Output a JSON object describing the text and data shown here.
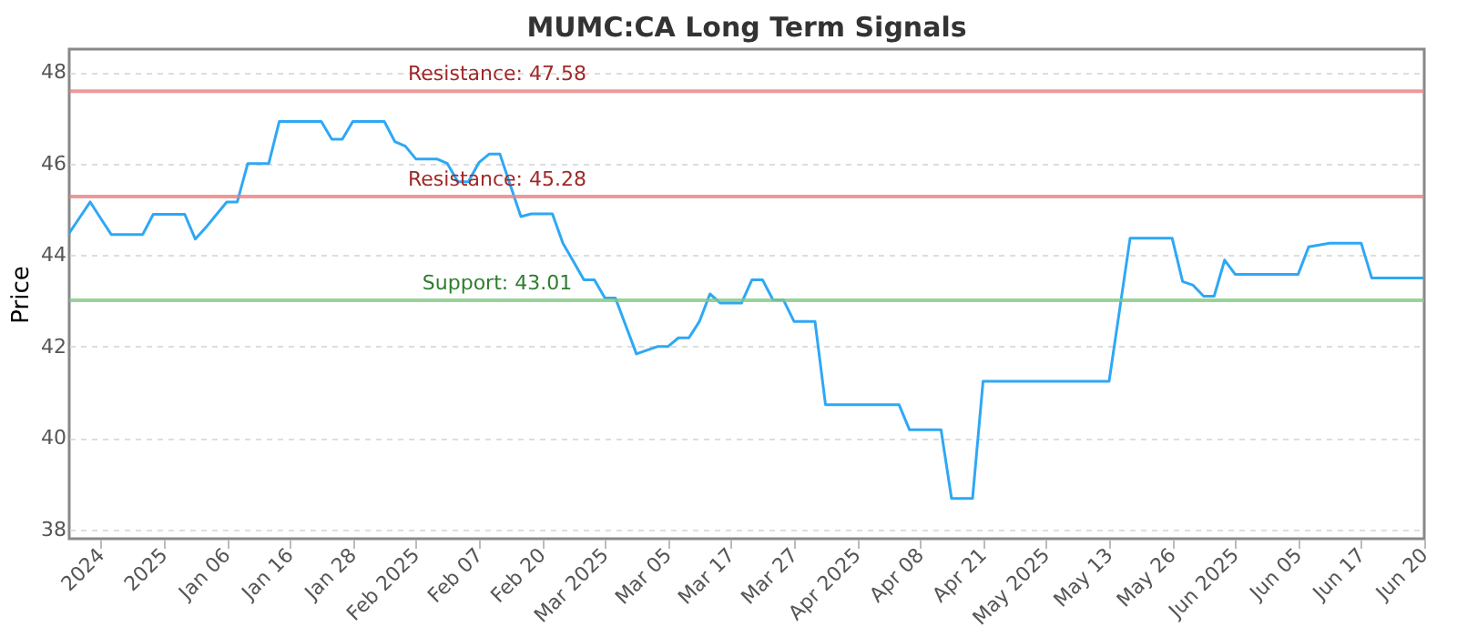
{
  "chart_data": {
    "type": "line",
    "title": "MUMC:CA Long Term Signals",
    "ylabel": "Price",
    "categories": [
      null,
      null,
      null,
      "2024",
      null,
      null,
      null,
      null,
      null,
      "2025",
      null,
      null,
      null,
      null,
      null,
      "Jan 06",
      null,
      null,
      null,
      null,
      null,
      "Jan 16",
      null,
      null,
      null,
      null,
      null,
      "Jan 28",
      null,
      null,
      null,
      null,
      null,
      "Feb 2025",
      null,
      null,
      null,
      null,
      null,
      "Feb 07",
      null,
      null,
      null,
      null,
      null,
      "Feb 20",
      null,
      null,
      null,
      null,
      null,
      "Mar 2025",
      null,
      null,
      null,
      null,
      null,
      "Mar 05",
      null,
      null,
      null,
      null,
      null,
      "Mar 17",
      null,
      null,
      null,
      null,
      null,
      "Mar 27",
      null,
      null,
      null,
      null,
      null,
      "Apr 2025",
      null,
      null,
      null,
      null,
      null,
      "Apr 08",
      null,
      null,
      null,
      null,
      null,
      "Apr 21",
      null,
      null,
      null,
      null,
      null,
      "May 2025",
      null,
      null,
      null,
      null,
      null,
      "May 13",
      null,
      null,
      null,
      null,
      null,
      "May 26",
      null,
      null,
      null,
      null,
      null,
      "Jun 2025",
      null,
      null,
      null,
      null,
      null,
      "Jun 05",
      null,
      null,
      null,
      null,
      null,
      "Jun 17",
      null,
      null,
      null,
      null,
      null,
      "Jun 20"
    ],
    "series": [
      {
        "color": "#2ea8f5",
        "values": [
          44.48,
          44.82,
          45.16,
          44.8,
          44.45,
          44.45,
          44.45,
          44.45,
          44.89,
          44.89,
          44.89,
          44.89,
          44.35,
          44.6,
          44.88,
          45.16,
          45.16,
          46.0,
          46.0,
          46.0,
          46.92,
          46.92,
          46.92,
          46.92,
          46.92,
          46.53,
          46.53,
          46.92,
          46.92,
          46.92,
          46.92,
          46.48,
          46.38,
          46.1,
          46.1,
          46.1,
          46.0,
          45.6,
          45.6,
          46.02,
          46.21,
          46.21,
          45.52,
          44.84,
          44.9,
          44.9,
          44.9,
          44.26,
          43.86,
          43.46,
          43.46,
          43.06,
          43.06,
          42.45,
          41.84,
          41.92,
          42.0,
          42.0,
          42.19,
          42.19,
          42.55,
          43.15,
          42.95,
          42.95,
          42.95,
          43.46,
          43.46,
          43.02,
          43.02,
          42.55,
          42.55,
          42.55,
          40.73,
          40.73,
          40.73,
          40.73,
          40.73,
          40.73,
          40.73,
          40.73,
          40.18,
          40.18,
          40.18,
          40.18,
          38.68,
          38.68,
          38.68,
          41.24,
          41.24,
          41.24,
          41.24,
          41.24,
          41.24,
          41.24,
          41.24,
          41.24,
          41.24,
          41.24,
          41.24,
          41.24,
          42.8,
          44.37,
          44.37,
          44.37,
          44.37,
          44.37,
          43.42,
          43.34,
          43.1,
          43.1,
          43.89,
          43.58,
          43.58,
          43.58,
          43.58,
          43.58,
          43.58,
          43.58,
          44.18,
          44.22,
          44.26,
          44.26,
          44.26,
          44.26,
          43.5,
          43.5,
          43.5,
          43.5,
          43.5,
          43.5
        ]
      }
    ],
    "ylim": [
      37.8,
      48.5
    ],
    "yticks": [
      38,
      40,
      42,
      44,
      46,
      48
    ],
    "grid": "y",
    "marker": "none",
    "line_style": "solid",
    "ref_lines": [
      {
        "axis": "y",
        "value": 47.58,
        "label": "Resistance: 47.58",
        "color": "#e88080"
      },
      {
        "axis": "y",
        "value": 45.28,
        "label": "Resistance: 45.28",
        "color": "#e88080"
      },
      {
        "axis": "y",
        "value": 43.01,
        "label": "Support: 43.01",
        "color": "#80c880"
      }
    ]
  }
}
